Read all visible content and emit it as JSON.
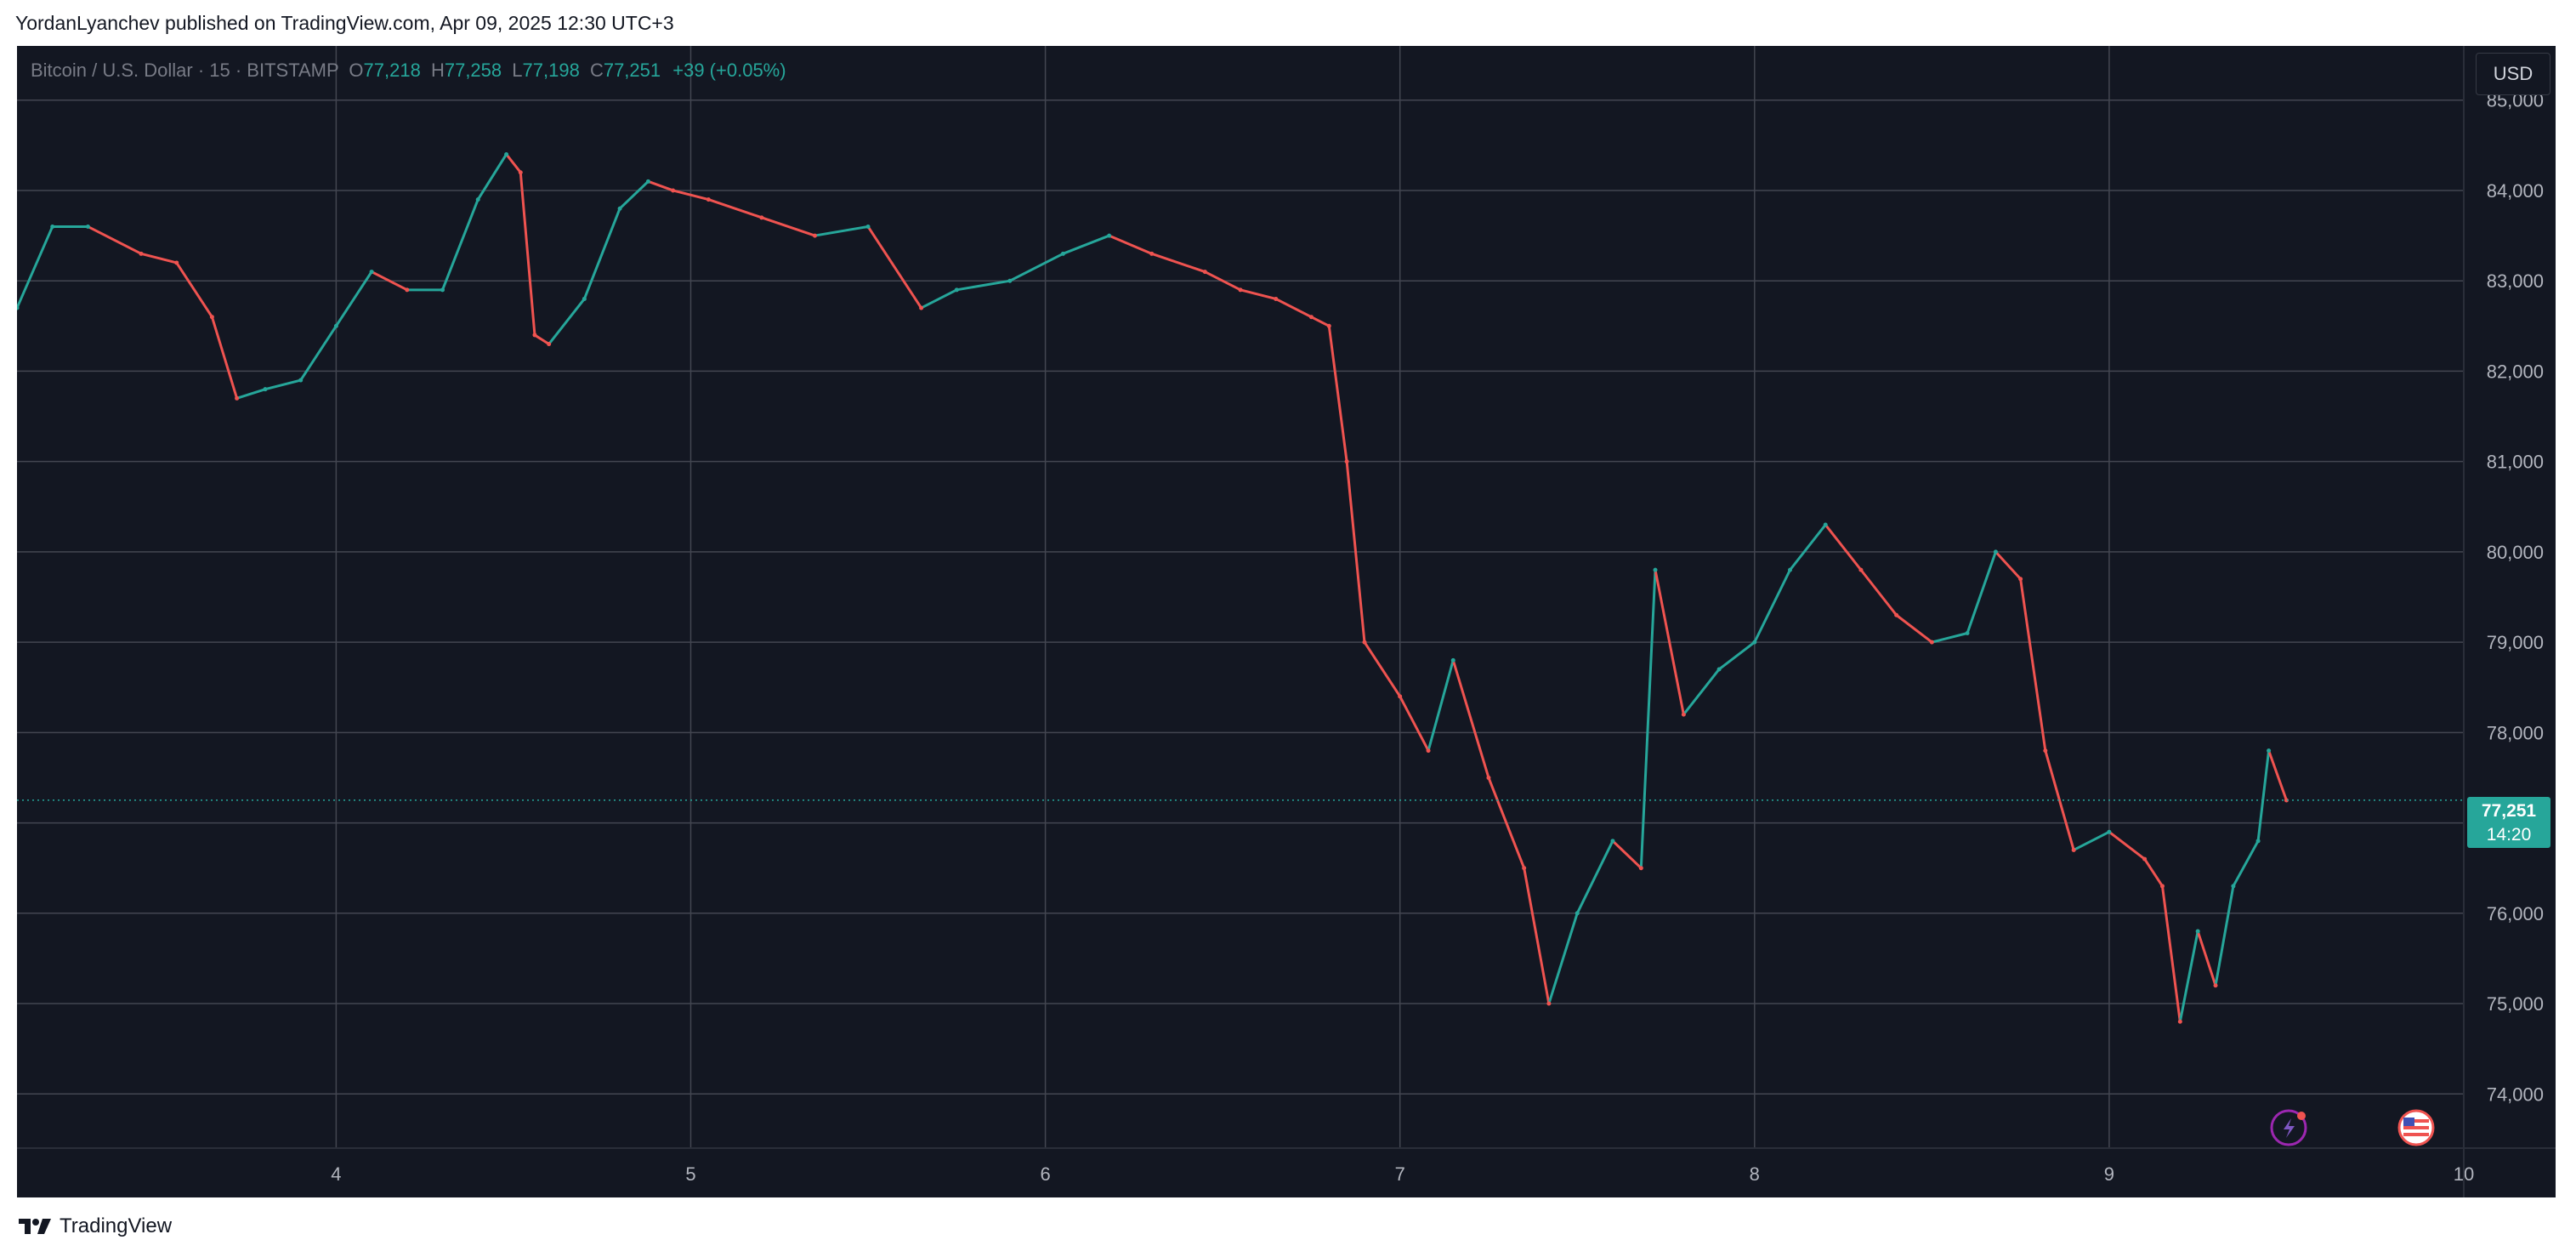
{
  "caption": "YordanLyanchev published on TradingView.com, Apr 09, 2025 12:30 UTC+3",
  "brand": "TradingView",
  "legend": {
    "symbol": "Bitcoin / U.S. Dollar · 15 · BITSTAMP",
    "open_label": "O",
    "open": "77,218",
    "high_label": "H",
    "high": "77,258",
    "low_label": "L",
    "low": "77,198",
    "close_label": "C",
    "close": "77,251",
    "change": "+39 (+0.05%)"
  },
  "currency": "USD",
  "last_price": {
    "price": "77,251",
    "countdown": "14:20"
  },
  "colors": {
    "up": "#26a69a",
    "down": "#ef5350",
    "background": "#131722",
    "grid": "#434651",
    "axis_text": "#b2b5be"
  },
  "icons": [
    "tradingview-logo-icon",
    "lightning-icon",
    "us-flag-icon"
  ],
  "chart_data": {
    "type": "line",
    "title": "Bitcoin / U.S. Dollar · 15 · BITSTAMP",
    "xlabel": "",
    "ylabel": "",
    "x_ticks": [
      "4",
      "5",
      "6",
      "7",
      "8",
      "9",
      "10"
    ],
    "y_ticks": [
      "74,000",
      "75,000",
      "76,000",
      "77,000",
      "78,000",
      "79,000",
      "80,000",
      "81,000",
      "82,000",
      "83,000",
      "84,000",
      "85,000"
    ],
    "ylim": [
      73400,
      85600
    ],
    "xlim": [
      3.1,
      10
    ],
    "grid": true,
    "series": [
      {
        "name": "",
        "x": [
          3.1,
          3.2,
          3.3,
          3.45,
          3.55,
          3.65,
          3.72,
          3.8,
          3.9,
          4.0,
          4.1,
          4.2,
          4.3,
          4.4,
          4.48,
          4.52,
          4.56,
          4.6,
          4.7,
          4.8,
          4.88,
          4.95,
          5.05,
          5.2,
          5.35,
          5.5,
          5.65,
          5.75,
          5.9,
          6.05,
          6.18,
          6.3,
          6.45,
          6.55,
          6.65,
          6.75,
          6.8,
          6.85,
          6.9,
          7.0,
          7.08,
          7.15,
          7.25,
          7.35,
          7.42,
          7.5,
          7.6,
          7.68,
          7.72,
          7.8,
          7.9,
          8.0,
          8.1,
          8.2,
          8.3,
          8.4,
          8.5,
          8.6,
          8.68,
          8.75,
          8.82,
          8.9,
          9.0,
          9.1,
          9.15,
          9.2,
          9.25,
          9.3,
          9.35,
          9.42,
          9.45,
          9.5
        ],
        "values": [
          82700,
          83600,
          83600,
          83300,
          83200,
          82600,
          81700,
          81800,
          81900,
          82500,
          83100,
          82900,
          82900,
          83900,
          84400,
          84200,
          82400,
          82300,
          82800,
          83800,
          84100,
          84000,
          83900,
          83700,
          83500,
          83600,
          82700,
          82900,
          83000,
          83300,
          83500,
          83300,
          83100,
          82900,
          82800,
          82600,
          82500,
          81000,
          79000,
          78400,
          77800,
          78800,
          77500,
          76500,
          75000,
          76000,
          76800,
          76500,
          79800,
          78200,
          78700,
          79000,
          79800,
          80300,
          79800,
          79300,
          79000,
          79100,
          80000,
          79700,
          77800,
          76700,
          76900,
          76600,
          76300,
          74800,
          75800,
          75200,
          76300,
          76800,
          77800,
          77250
        ]
      }
    ]
  }
}
